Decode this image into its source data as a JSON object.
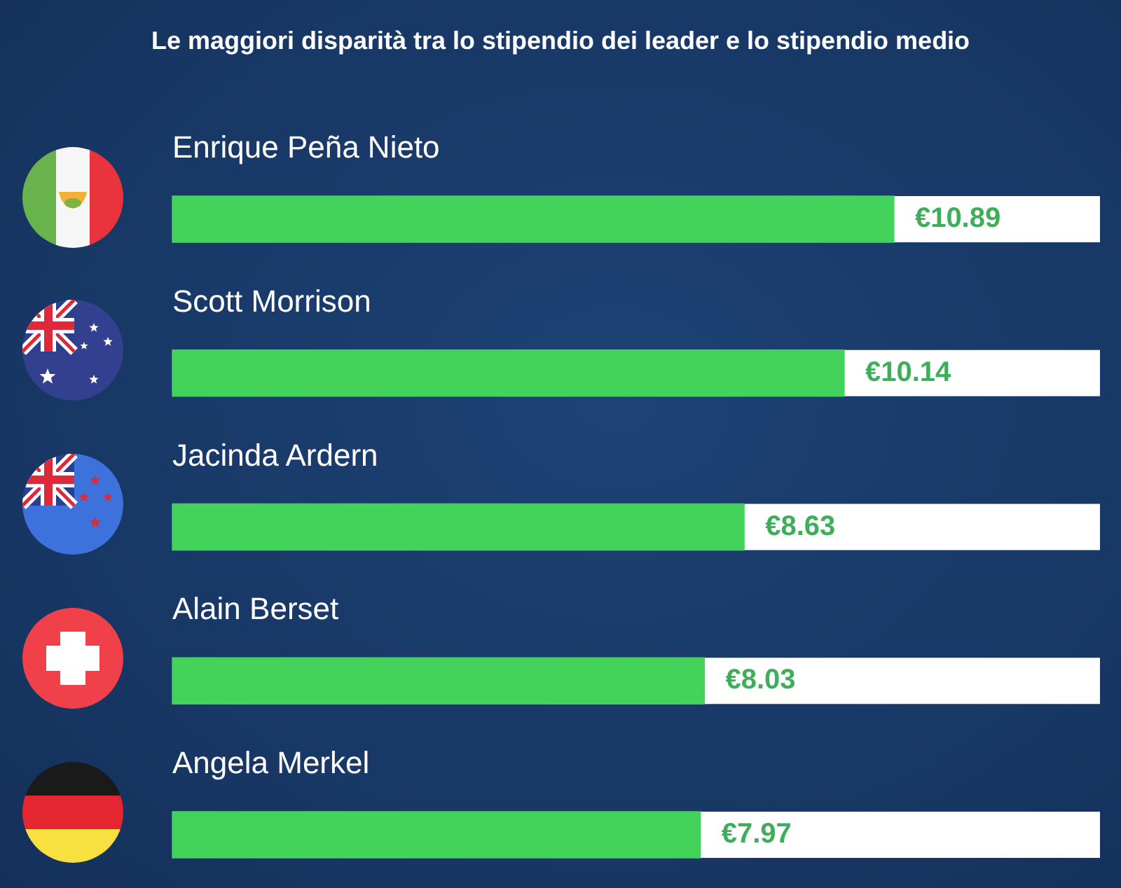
{
  "chart_data": {
    "type": "bar",
    "orientation": "horizontal",
    "title": "Le maggiori disparità tra lo stipendio dei leader e lo stipendio medio",
    "categories": [
      "Enrique Peña Nieto",
      "Scott Morrison",
      "Jacinda Ardern",
      "Alain Berset",
      "Angela Merkel"
    ],
    "values": [
      10.89,
      10.14,
      8.63,
      8.03,
      7.97
    ],
    "value_labels": [
      "€10.89",
      "€10.14",
      "€8.63",
      "€8.03",
      "€7.97"
    ],
    "color": "#44d35a",
    "xlim": [
      0,
      14
    ],
    "tick_labels": "y"
  }
}
